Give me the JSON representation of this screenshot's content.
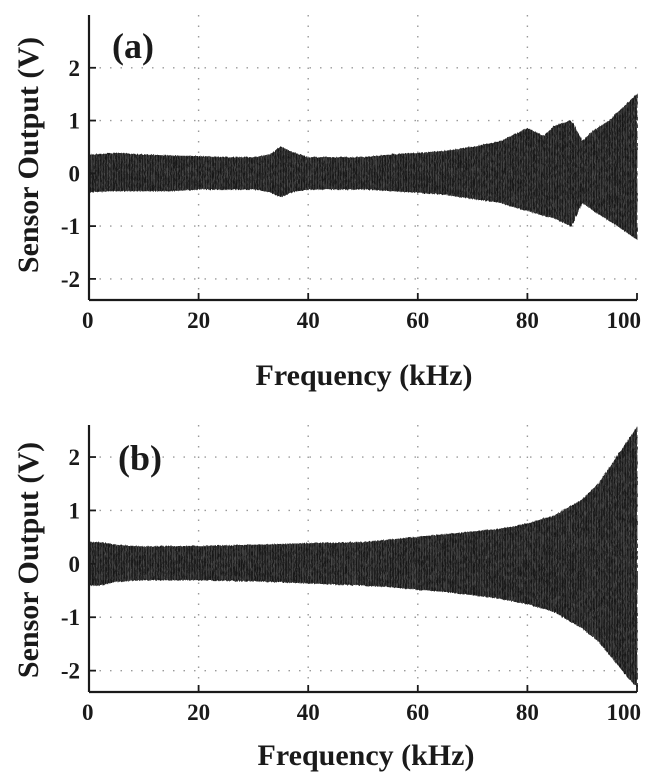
{
  "chart_data": [
    {
      "type": "line",
      "panel_label": "(a)",
      "xlabel": "Frequency (kHz)",
      "ylabel": "Sensor Output (V)",
      "xlim": [
        0,
        100
      ],
      "ylim": [
        -2.4,
        3.0
      ],
      "xticks": [
        0,
        20,
        40,
        60,
        80,
        100
      ],
      "yticks": [
        -2,
        -1,
        0,
        1,
        2
      ],
      "grid": true,
      "series": [
        {
          "x": [
            0,
            5,
            10,
            15,
            20,
            25,
            30,
            33,
            35,
            37,
            40,
            45,
            50,
            55,
            60,
            65,
            70,
            75,
            78,
            80,
            83,
            85,
            88,
            90,
            92,
            95,
            98,
            100
          ],
          "upper": [
            0.35,
            0.38,
            0.35,
            0.33,
            0.32,
            0.3,
            0.3,
            0.35,
            0.5,
            0.4,
            0.3,
            0.3,
            0.3,
            0.35,
            0.38,
            0.42,
            0.5,
            0.6,
            0.75,
            0.85,
            0.7,
            0.9,
            1.0,
            0.6,
            0.8,
            1.0,
            1.3,
            1.5
          ],
          "lower": [
            -0.35,
            -0.33,
            -0.33,
            -0.33,
            -0.3,
            -0.3,
            -0.3,
            -0.35,
            -0.45,
            -0.35,
            -0.3,
            -0.3,
            -0.3,
            -0.33,
            -0.36,
            -0.4,
            -0.48,
            -0.55,
            -0.65,
            -0.7,
            -0.8,
            -0.85,
            -1.0,
            -0.55,
            -0.7,
            -0.9,
            -1.1,
            -1.25
          ]
        }
      ]
    },
    {
      "type": "line",
      "panel_label": "(b)",
      "xlabel": "Frequency (kHz)",
      "ylabel": "Sensor Output (V)",
      "xlim": [
        0,
        100
      ],
      "ylim": [
        -2.4,
        2.6
      ],
      "xticks": [
        0,
        20,
        40,
        60,
        80,
        100
      ],
      "yticks": [
        -2,
        -1,
        0,
        1,
        2
      ],
      "grid": true,
      "series": [
        {
          "x": [
            0,
            2,
            5,
            10,
            20,
            30,
            40,
            50,
            55,
            60,
            65,
            70,
            75,
            80,
            85,
            90,
            93,
            95,
            97,
            99,
            100
          ],
          "upper": [
            0.4,
            0.4,
            0.35,
            0.32,
            0.33,
            0.35,
            0.38,
            0.4,
            0.45,
            0.5,
            0.55,
            0.6,
            0.65,
            0.75,
            0.9,
            1.2,
            1.5,
            1.8,
            2.1,
            2.4,
            2.55
          ],
          "lower": [
            -0.4,
            -0.4,
            -0.33,
            -0.3,
            -0.3,
            -0.32,
            -0.36,
            -0.4,
            -0.43,
            -0.48,
            -0.52,
            -0.58,
            -0.65,
            -0.75,
            -0.9,
            -1.2,
            -1.45,
            -1.7,
            -1.95,
            -2.2,
            -2.3
          ]
        }
      ]
    }
  ]
}
